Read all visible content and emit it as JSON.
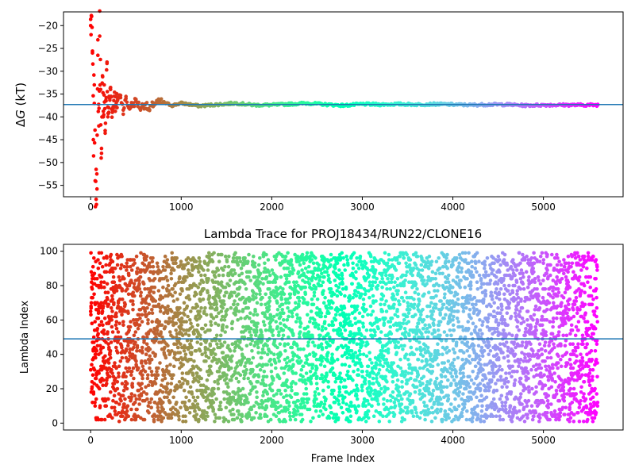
{
  "chart_data": [
    {
      "type": "scatter",
      "title": "",
      "xlabel": "",
      "ylabel": "ΔG (kT)",
      "ylabel_parts": {
        "delta": "Δ",
        "var": "G",
        "unit": " (kT)"
      },
      "xlim": [
        -300,
        5880
      ],
      "ylim": [
        -57.5,
        -17.0
      ],
      "xticks": [
        0,
        1000,
        2000,
        3000,
        4000,
        5000
      ],
      "yticks": [
        -55,
        -50,
        -45,
        -40,
        -35,
        -30,
        -25,
        -20
      ],
      "grid": false,
      "colormap": "rainbow",
      "hline": {
        "y": -37.3,
        "color": "#1f77b4"
      },
      "n_frames": 5600,
      "series": [
        {
          "x": [
            0,
            10,
            20,
            30,
            40,
            50,
            60,
            70,
            80,
            90,
            100,
            110,
            120,
            130,
            140,
            150,
            160,
            170,
            180,
            190,
            200,
            220,
            240,
            260,
            280,
            300,
            330,
            360,
            390,
            420,
            450,
            500,
            550,
            600,
            650,
            700,
            800,
            900,
            1000,
            1200,
            1400,
            1600,
            1800,
            2000,
            2200,
            2400,
            2600,
            2800,
            3000,
            3200,
            3400,
            3600,
            3800,
            4000,
            4200,
            4400,
            4600,
            4800,
            5000,
            5200,
            5400,
            5600
          ],
          "y": [
            -20.0,
            -18.0,
            -26.0,
            -45.0,
            -33.0,
            -54.0,
            -51.5,
            -55.8,
            -26.5,
            -42.0,
            -22.3,
            -34.0,
            -48.0,
            -31.0,
            -40.0,
            -33.0,
            -43.0,
            -36.5,
            -28.3,
            -40.0,
            -38.0,
            -34.0,
            -39.0,
            -35.5,
            -37.8,
            -36.0,
            -35.3,
            -38.5,
            -36.0,
            -38.0,
            -37.5,
            -36.5,
            -38.0,
            -37.2,
            -38.6,
            -37.0,
            -36.8,
            -37.5,
            -37.0,
            -37.6,
            -37.3,
            -37.0,
            -37.4,
            -37.4,
            -37.2,
            -37.0,
            -37.3,
            -37.5,
            -37.2,
            -37.3,
            -37.2,
            -37.3,
            -37.2,
            -37.3,
            -37.4,
            -37.3,
            -37.3,
            -37.5,
            -37.4,
            -37.4,
            -37.4,
            -37.4
          ]
        }
      ]
    },
    {
      "type": "scatter",
      "title": "Lambda Trace for PROJ18434/RUN22/CLONE16",
      "xlabel": "Frame Index",
      "ylabel": "Lambda Index",
      "xlim": [
        -300,
        5880
      ],
      "ylim": [
        -4,
        104
      ],
      "xticks": [
        0,
        1000,
        2000,
        3000,
        4000,
        5000
      ],
      "yticks": [
        0,
        20,
        40,
        60,
        80,
        100
      ],
      "grid": false,
      "colormap": "rainbow",
      "hline": {
        "y": 49,
        "color": "#1f77b4"
      },
      "n_frames": 5600,
      "lambda_range": [
        1,
        99
      ],
      "point_count": 5600
    }
  ]
}
